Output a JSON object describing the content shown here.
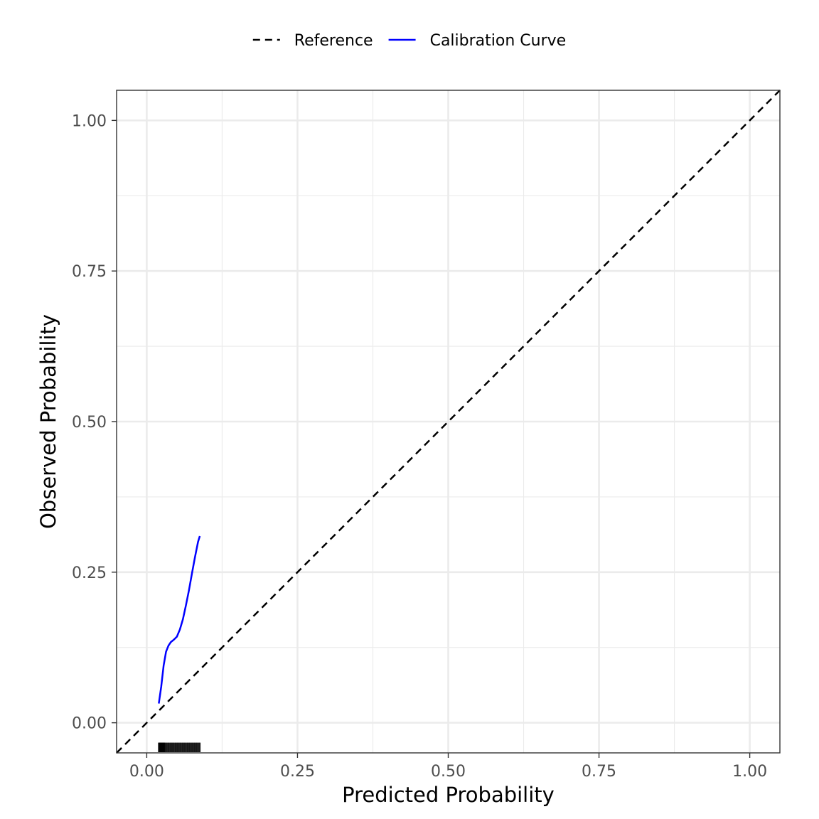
{
  "chart_data": {
    "type": "line",
    "title": "",
    "xlabel": "Predicted Probability",
    "ylabel": "Observed Probability",
    "xlim": [
      -0.05,
      1.05
    ],
    "ylim": [
      -0.05,
      1.05
    ],
    "x_ticks": [
      "0.00",
      "0.25",
      "0.50",
      "0.75",
      "1.00"
    ],
    "y_ticks": [
      "0.00",
      "0.25",
      "0.50",
      "0.75",
      "1.00"
    ],
    "x_tick_values": [
      0,
      0.25,
      0.5,
      0.75,
      1.0
    ],
    "y_tick_values": [
      0,
      0.25,
      0.5,
      0.75,
      1.0
    ],
    "grid": true,
    "legend_position": "top",
    "legend": [
      {
        "label": "Reference",
        "style": "dashed",
        "color": "#000000"
      },
      {
        "label": "Calibration Curve",
        "style": "solid",
        "color": "#0000ff"
      }
    ],
    "series": [
      {
        "name": "Reference",
        "color": "#000000",
        "dash": true,
        "x": [
          -0.05,
          1.05
        ],
        "y": [
          -0.05,
          1.05
        ]
      },
      {
        "name": "Calibration Curve",
        "color": "#0000ff",
        "dash": false,
        "x": [
          0.02,
          0.024,
          0.028,
          0.032,
          0.036,
          0.04,
          0.045,
          0.05,
          0.055,
          0.06,
          0.065,
          0.07,
          0.075,
          0.08,
          0.085,
          0.088
        ],
        "y": [
          0.032,
          0.06,
          0.095,
          0.118,
          0.128,
          0.134,
          0.138,
          0.143,
          0.155,
          0.172,
          0.195,
          0.22,
          0.248,
          0.275,
          0.3,
          0.31
        ]
      }
    ],
    "rug": {
      "color": "#000000",
      "x": [
        0.02,
        0.021,
        0.022,
        0.023,
        0.024,
        0.025,
        0.026,
        0.027,
        0.028,
        0.029,
        0.03,
        0.032,
        0.034,
        0.036,
        0.038,
        0.04,
        0.042,
        0.044,
        0.046,
        0.048,
        0.05,
        0.052,
        0.054,
        0.056,
        0.058,
        0.06,
        0.062,
        0.064,
        0.066,
        0.068,
        0.07,
        0.072,
        0.074,
        0.076,
        0.078,
        0.08,
        0.082,
        0.084,
        0.086,
        0.088
      ],
      "y_from": -0.05,
      "y_to": -0.033
    }
  }
}
